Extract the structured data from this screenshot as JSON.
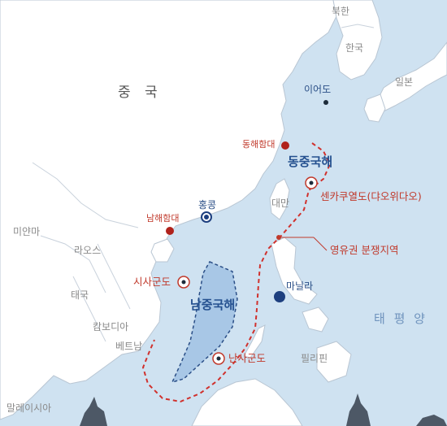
{
  "countries": {
    "china": "중 국",
    "north_korea": "북한",
    "south_korea": "한국",
    "japan": "일본",
    "myanmar": "미얀마",
    "laos": "라오스",
    "thailand": "태국",
    "cambodia": "캄보디아",
    "vietnam": "베트남",
    "philippines": "필리핀",
    "malaysia": "말레이시아",
    "taiwan": "대만"
  },
  "seas": {
    "east_china_sea": "동중국해",
    "south_china_sea": "남중국해",
    "pacific": "태 평 양"
  },
  "places": {
    "ieodo": "이어도",
    "hong_kong": "홍콩",
    "manila": "마닐라",
    "donghae_fleet": "동해함대",
    "namhae_fleet": "남해함대"
  },
  "islands": {
    "senkaku": "센카쿠열도(댜오위다오)",
    "paracel": "시사군도",
    "spratly": "난사군도"
  },
  "annotations": {
    "dispute_zone": "영유권 분쟁지역"
  },
  "colors": {
    "sea": "#cfe2f1",
    "land": "#ffffff",
    "land_border": "#b9c6d3",
    "claim_line": "#d0312d",
    "scs_area": "#a8c7e6",
    "fleet_marker": "#b0221c",
    "city_marker": "#1d3f7f"
  }
}
